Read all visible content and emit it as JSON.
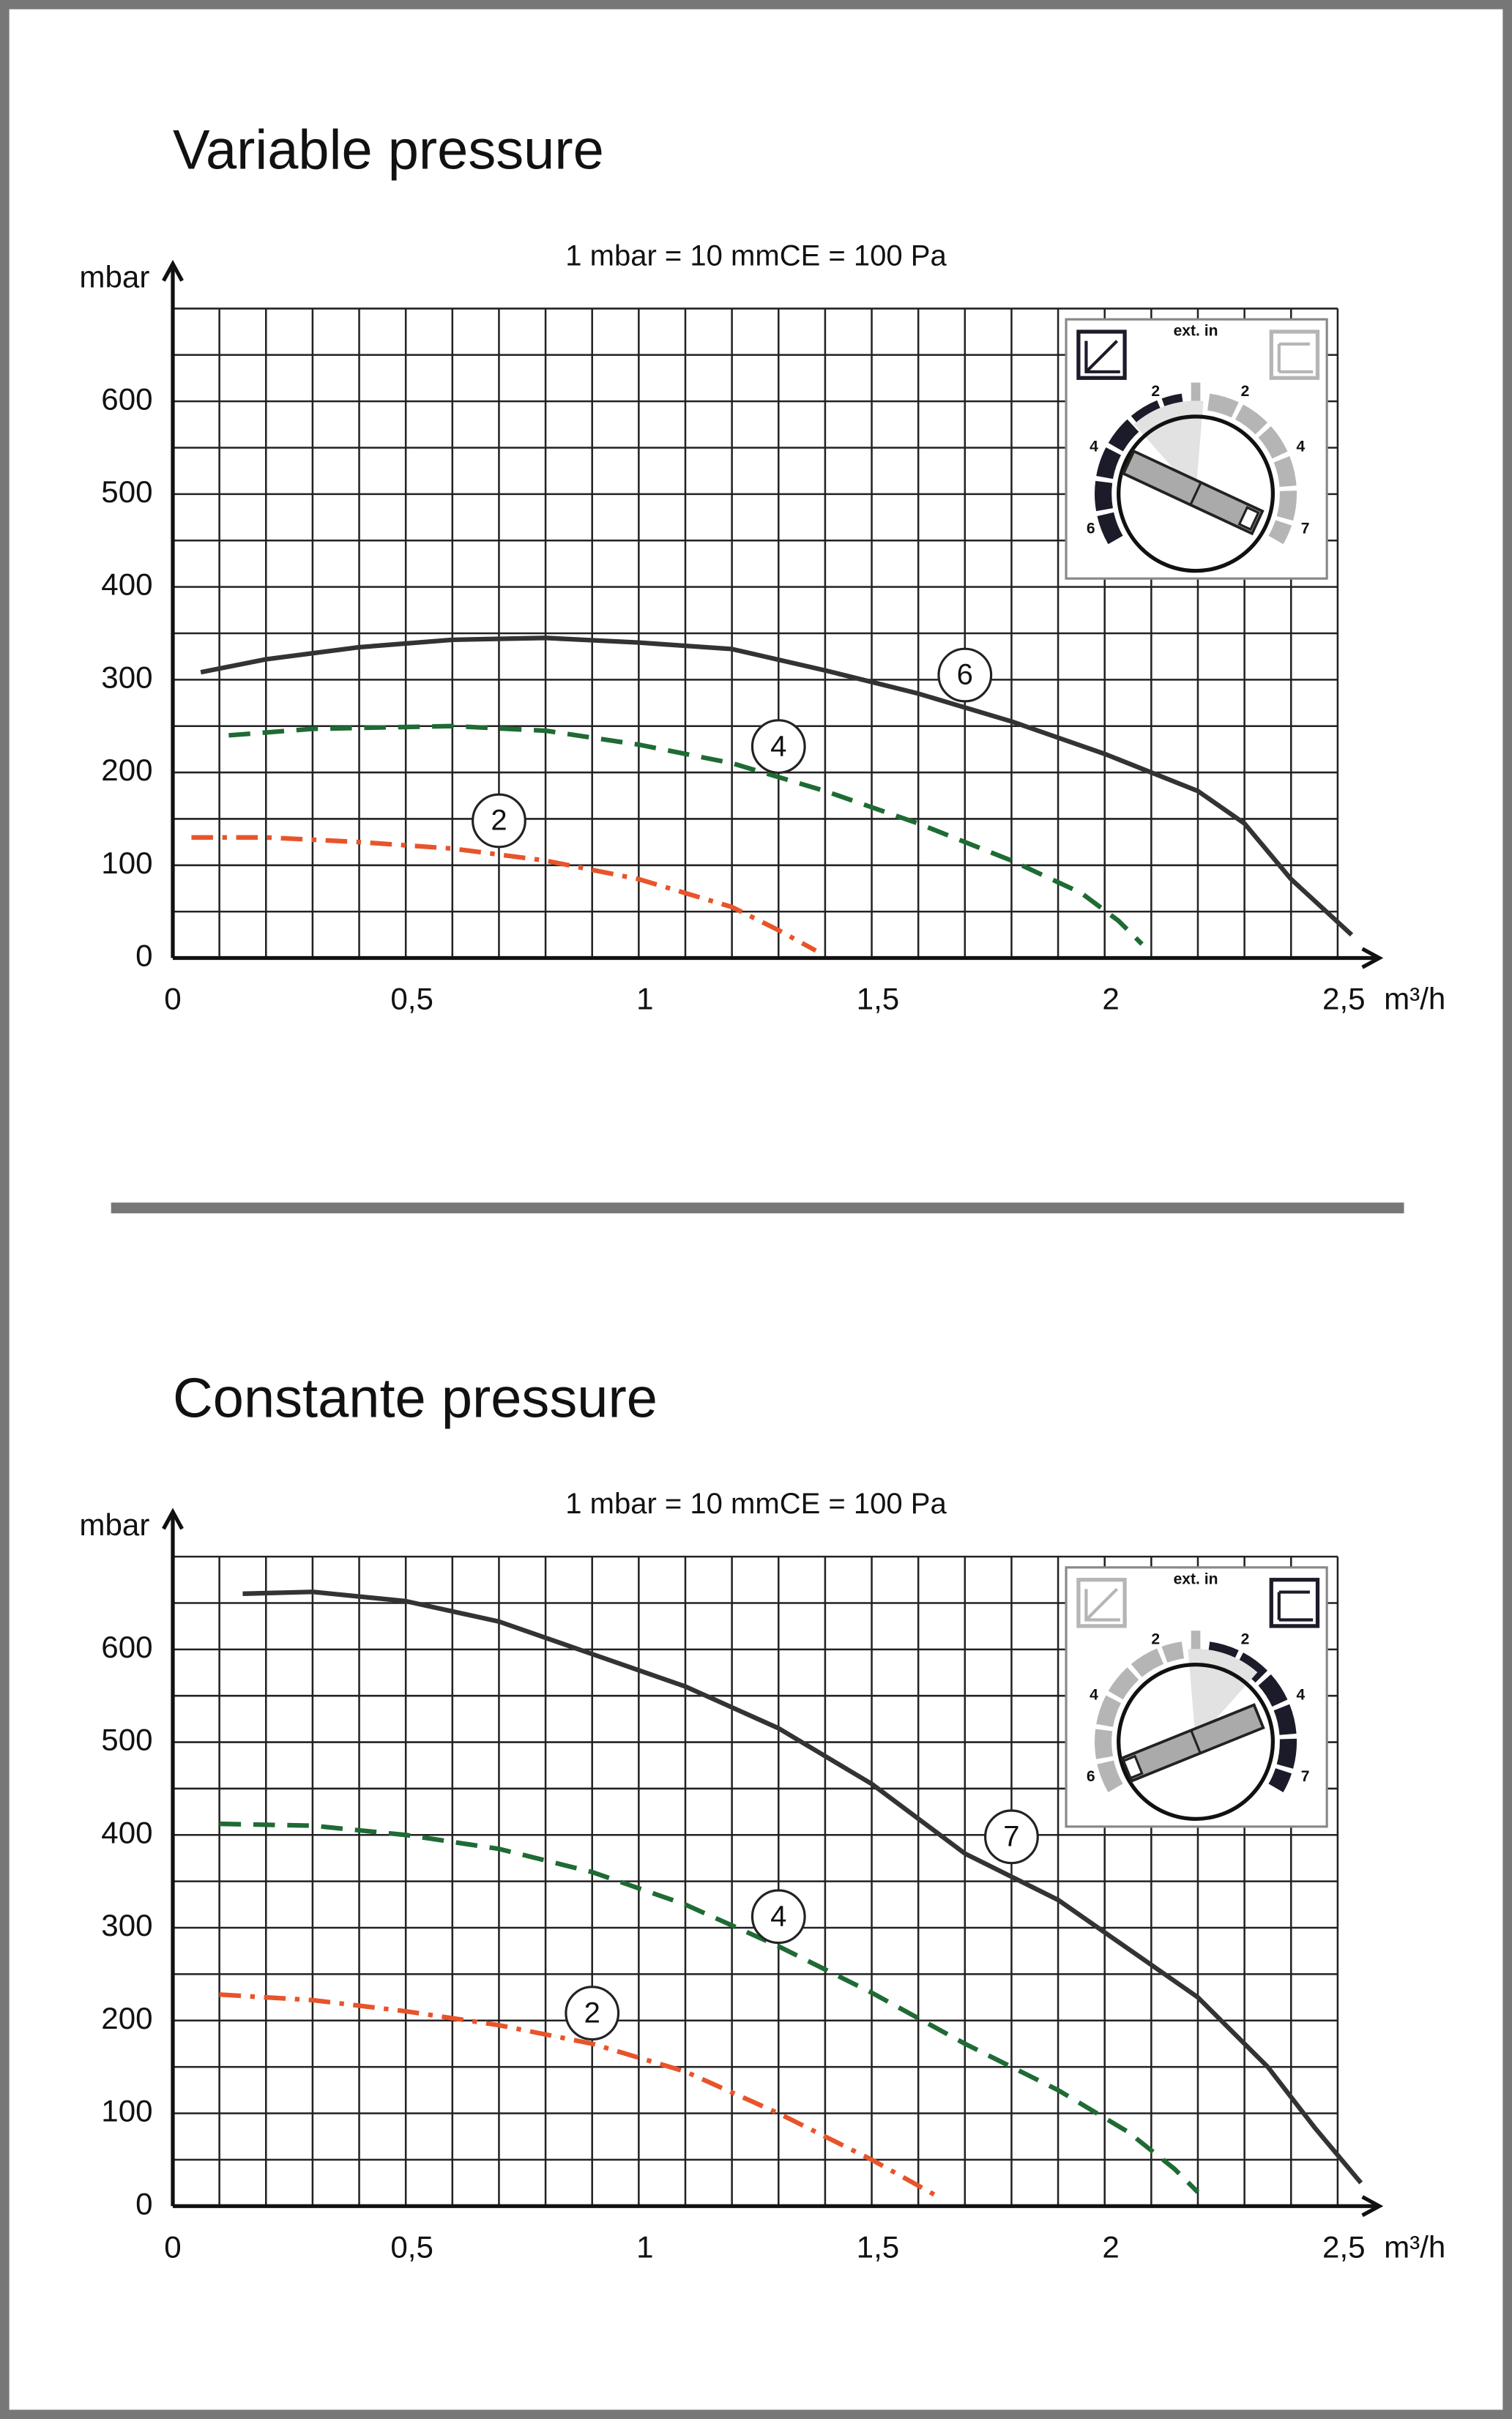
{
  "chart_data": [
    {
      "type": "line",
      "title": "Variable pressure",
      "subtitle": "1 mbar = 10 mmCE = 100 Pa",
      "y_label": "mbar",
      "x_label": "m³/h",
      "xlim": [
        0,
        2.5
      ],
      "ylim": [
        0,
        700
      ],
      "xticks": [
        0,
        {
          "value": 0.5,
          "label": "0,5"
        },
        1,
        {
          "value": 1.5,
          "label": "1,5"
        },
        2,
        {
          "value": 2.5,
          "label": "2,5"
        }
      ],
      "yticks": [
        0,
        100,
        200,
        300,
        400,
        500,
        600
      ],
      "grid": {
        "x_step": 0.1,
        "y_step": 50
      },
      "series": [
        {
          "name": "6",
          "color": "#333333",
          "style": "solid",
          "x": [
            0.06,
            0.2,
            0.4,
            0.6,
            0.8,
            1.0,
            1.2,
            1.4,
            1.6,
            1.8,
            2.0,
            2.2,
            2.3,
            2.4,
            2.53
          ],
          "values": [
            308,
            322,
            335,
            343,
            345,
            340,
            333,
            310,
            285,
            255,
            220,
            180,
            145,
            85,
            25
          ]
        },
        {
          "name": "4",
          "color": "#1e6b34",
          "style": "dashed",
          "x": [
            0.12,
            0.3,
            0.6,
            0.8,
            1.0,
            1.2,
            1.4,
            1.6,
            1.8,
            1.95,
            2.03,
            2.08
          ],
          "values": [
            240,
            247,
            250,
            245,
            230,
            210,
            180,
            145,
            105,
            70,
            40,
            15
          ]
        },
        {
          "name": "2",
          "color": "#e8542a",
          "style": "dashdot",
          "x": [
            0.04,
            0.2,
            0.4,
            0.6,
            0.8,
            1.0,
            1.2,
            1.3,
            1.38
          ],
          "values": [
            130,
            130,
            125,
            118,
            105,
            85,
            55,
            30,
            8
          ]
        }
      ],
      "inset": {
        "title": "ext. in",
        "left_scale": [
          "2",
          "4",
          "6"
        ],
        "right_scale": [
          "2",
          "4",
          "7"
        ]
      }
    },
    {
      "type": "line",
      "title": "Constante pressure",
      "subtitle": "1 mbar = 10 mmCE = 100 Pa",
      "y_label": "mbar",
      "x_label": "m³/h",
      "xlim": [
        0,
        2.5
      ],
      "ylim": [
        0,
        700
      ],
      "xticks": [
        0,
        {
          "value": 0.5,
          "label": "0,5"
        },
        1,
        {
          "value": 1.5,
          "label": "1,5"
        },
        2,
        {
          "value": 2.5,
          "label": "2,5"
        }
      ],
      "yticks": [
        0,
        100,
        200,
        300,
        400,
        500,
        600
      ],
      "grid": {
        "x_step": 0.1,
        "y_step": 50
      },
      "series": [
        {
          "name": "7",
          "color": "#333333",
          "style": "solid",
          "x": [
            0.15,
            0.3,
            0.5,
            0.7,
            0.9,
            1.1,
            1.3,
            1.5,
            1.7,
            1.9,
            2.0,
            2.2,
            2.35,
            2.45,
            2.55
          ],
          "values": [
            660,
            662,
            652,
            630,
            595,
            560,
            515,
            455,
            380,
            330,
            295,
            225,
            150,
            85,
            25
          ]
        },
        {
          "name": "4",
          "color": "#1e6b34",
          "style": "dashed",
          "x": [
            0.1,
            0.3,
            0.5,
            0.7,
            0.9,
            1.1,
            1.3,
            1.5,
            1.7,
            1.9,
            2.05,
            2.15,
            2.2
          ],
          "values": [
            412,
            410,
            400,
            385,
            360,
            325,
            280,
            230,
            175,
            125,
            80,
            40,
            15
          ]
        },
        {
          "name": "2",
          "color": "#e8542a",
          "style": "dashdot",
          "x": [
            0.1,
            0.3,
            0.5,
            0.7,
            0.9,
            1.1,
            1.3,
            1.5,
            1.65
          ],
          "values": [
            228,
            222,
            210,
            195,
            175,
            145,
            100,
            50,
            8
          ]
        }
      ],
      "inset": {
        "title": "ext. in",
        "left_scale": [
          "2",
          "4",
          "6"
        ],
        "right_scale": [
          "2",
          "4",
          "7"
        ]
      }
    }
  ]
}
